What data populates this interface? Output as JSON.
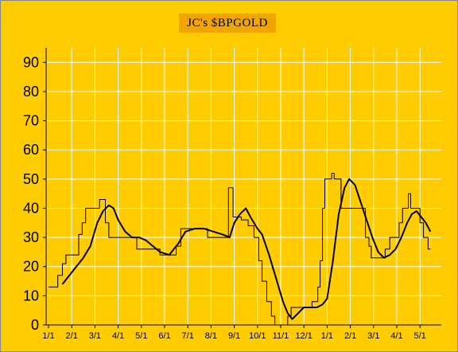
{
  "chart_data": {
    "type": "line",
    "title": "JC's $BPGOLD",
    "xlabel": "",
    "ylabel": "",
    "ylim": [
      0,
      95
    ],
    "yticks": [
      0,
      10,
      20,
      30,
      40,
      50,
      60,
      70,
      80,
      90
    ],
    "x_ticks": [
      "1/1",
      "2/1",
      "3/1",
      "4/1",
      "5/1",
      "6/1",
      "7/1",
      "8/1",
      "9/1",
      "10/1",
      "11/1",
      "12/1",
      "1/1",
      "2/1",
      "3/1",
      "4/1",
      "5/1"
    ],
    "grid": true,
    "background_color": "#FFCC00",
    "title_background": "#F0A500",
    "series": [
      {
        "kind": "step",
        "color": "#000000",
        "width": 1,
        "points": [
          [
            0,
            13
          ],
          [
            0.4,
            13
          ],
          [
            0.4,
            17
          ],
          [
            0.6,
            17
          ],
          [
            0.6,
            21
          ],
          [
            0.75,
            21
          ],
          [
            0.75,
            24
          ],
          [
            1.3,
            24
          ],
          [
            1.3,
            31
          ],
          [
            1.45,
            31
          ],
          [
            1.45,
            35
          ],
          [
            1.6,
            35
          ],
          [
            1.6,
            40
          ],
          [
            2.2,
            40
          ],
          [
            2.2,
            43
          ],
          [
            2.45,
            43
          ],
          [
            2.45,
            35
          ],
          [
            2.6,
            35
          ],
          [
            2.6,
            30
          ],
          [
            3.8,
            30
          ],
          [
            3.8,
            26
          ],
          [
            4.8,
            26
          ],
          [
            4.8,
            24
          ],
          [
            5.5,
            24
          ],
          [
            5.5,
            27
          ],
          [
            5.7,
            27
          ],
          [
            5.7,
            33
          ],
          [
            6.85,
            33
          ],
          [
            6.85,
            30
          ],
          [
            7.75,
            30
          ],
          [
            7.75,
            47
          ],
          [
            7.95,
            47
          ],
          [
            7.95,
            37
          ],
          [
            8.3,
            37
          ],
          [
            8.3,
            36
          ],
          [
            8.6,
            36
          ],
          [
            8.6,
            34
          ],
          [
            8.85,
            34
          ],
          [
            8.85,
            30
          ],
          [
            9.05,
            30
          ],
          [
            9.05,
            22
          ],
          [
            9.2,
            22
          ],
          [
            9.2,
            15
          ],
          [
            9.4,
            15
          ],
          [
            9.4,
            8
          ],
          [
            9.6,
            8
          ],
          [
            9.6,
            3
          ],
          [
            9.75,
            3
          ],
          [
            9.75,
            0
          ],
          [
            10.3,
            0
          ],
          [
            10.3,
            3
          ],
          [
            10.45,
            3
          ],
          [
            10.45,
            6
          ],
          [
            11.35,
            6
          ],
          [
            11.35,
            8
          ],
          [
            11.6,
            8
          ],
          [
            11.6,
            13
          ],
          [
            11.7,
            13
          ],
          [
            11.7,
            22
          ],
          [
            11.8,
            22
          ],
          [
            11.8,
            40
          ],
          [
            11.9,
            40
          ],
          [
            11.9,
            50
          ],
          [
            12.2,
            50
          ],
          [
            12.2,
            52
          ],
          [
            12.3,
            52
          ],
          [
            12.3,
            50
          ],
          [
            12.6,
            50
          ],
          [
            12.6,
            40
          ],
          [
            13.65,
            40
          ],
          [
            13.65,
            30
          ],
          [
            13.8,
            30
          ],
          [
            13.8,
            27
          ],
          [
            13.9,
            27
          ],
          [
            13.9,
            23
          ],
          [
            14.5,
            23
          ],
          [
            14.5,
            26
          ],
          [
            14.7,
            26
          ],
          [
            14.7,
            30
          ],
          [
            15.1,
            30
          ],
          [
            15.1,
            35
          ],
          [
            15.25,
            35
          ],
          [
            15.25,
            40
          ],
          [
            15.5,
            40
          ],
          [
            15.5,
            45
          ],
          [
            15.6,
            45
          ],
          [
            15.6,
            40
          ],
          [
            16.0,
            40
          ],
          [
            16.0,
            35
          ],
          [
            16.15,
            35
          ],
          [
            16.15,
            30
          ],
          [
            16.35,
            30
          ],
          [
            16.35,
            26
          ],
          [
            16.45,
            26
          ]
        ]
      },
      {
        "kind": "smooth",
        "color": "#000000",
        "width": 2,
        "points": [
          [
            0.6,
            14
          ],
          [
            0.9,
            17
          ],
          [
            1.2,
            20
          ],
          [
            1.5,
            23
          ],
          [
            1.8,
            27
          ],
          [
            2.1,
            35
          ],
          [
            2.35,
            39
          ],
          [
            2.6,
            41
          ],
          [
            2.8,
            40
          ],
          [
            3.0,
            36
          ],
          [
            3.3,
            32
          ],
          [
            3.6,
            30
          ],
          [
            3.9,
            30
          ],
          [
            4.2,
            29
          ],
          [
            4.5,
            27
          ],
          [
            4.8,
            25
          ],
          [
            5.2,
            24
          ],
          [
            5.6,
            28
          ],
          [
            5.9,
            32
          ],
          [
            6.3,
            33
          ],
          [
            6.7,
            33
          ],
          [
            7.1,
            32
          ],
          [
            7.5,
            31
          ],
          [
            7.8,
            30
          ],
          [
            8.0,
            35
          ],
          [
            8.25,
            38
          ],
          [
            8.5,
            40
          ],
          [
            8.7,
            37
          ],
          [
            9.0,
            33
          ],
          [
            9.2,
            31
          ],
          [
            9.5,
            24
          ],
          [
            9.8,
            16
          ],
          [
            10.1,
            8
          ],
          [
            10.3,
            4
          ],
          [
            10.5,
            2
          ],
          [
            10.75,
            4
          ],
          [
            11.0,
            6
          ],
          [
            11.3,
            6
          ],
          [
            11.55,
            6
          ],
          [
            11.8,
            7
          ],
          [
            12.0,
            9
          ],
          [
            12.25,
            22
          ],
          [
            12.5,
            38
          ],
          [
            12.75,
            47
          ],
          [
            12.95,
            50
          ],
          [
            13.2,
            48
          ],
          [
            13.45,
            42
          ],
          [
            13.7,
            36
          ],
          [
            13.95,
            30
          ],
          [
            14.2,
            25
          ],
          [
            14.45,
            23
          ],
          [
            14.7,
            24
          ],
          [
            14.95,
            26
          ],
          [
            15.2,
            30
          ],
          [
            15.45,
            35
          ],
          [
            15.65,
            38
          ],
          [
            15.85,
            39
          ],
          [
            16.05,
            37
          ],
          [
            16.25,
            35
          ],
          [
            16.45,
            32
          ]
        ]
      }
    ]
  }
}
